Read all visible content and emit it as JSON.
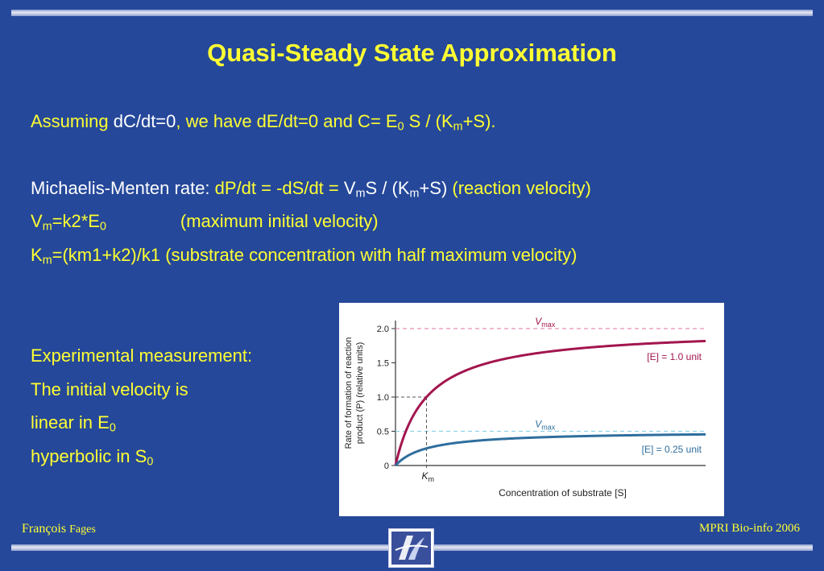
{
  "slide": {
    "title": "Quasi-Steady State Approximation",
    "line1": {
      "a": "Assuming ",
      "b": "dC/dt=0",
      "c": ", we have dE/dt=0 and C= E",
      "sub1": "0",
      "d": " S / (K",
      "sub2": "m",
      "e": "+S)."
    },
    "line2": {
      "label": "Michaelis-Menten rate: ",
      "eq_a": "dP/dt = -dS/dt = ",
      "v": "V",
      "v_sub": "m",
      "s": "S / (K",
      "k_sub": "m",
      "end": "+S) ",
      "note": "(reaction velocity)"
    },
    "line3": {
      "v": "V",
      "v_sub": "m",
      "eq": "=k2*E",
      "e_sub": "0",
      "note": "(maximum initial velocity)"
    },
    "line4": {
      "k": "K",
      "k_sub": "m",
      "eq": "=(km1+k2)/k1 ",
      "note": "(substrate concentration with half maximum velocity)"
    },
    "exp1": "Experimental measurement:",
    "exp2": "The initial velocity is",
    "exp3": "linear in E",
    "exp3_sub": "0",
    "exp4": "hyperbolic in S",
    "exp4_sub": "0",
    "footer_left_a": "François ",
    "footer_left_b": "Fages",
    "footer_right": "MPRI Bio-info  2006"
  },
  "chart_data": {
    "type": "line",
    "xlabel": "Concentration of substrate [S]",
    "ylabel_line1": "Rate of formation of reaction",
    "ylabel_line2": "product (P) (relative units)",
    "ylim": [
      0,
      2.0
    ],
    "xlim": [
      0,
      10
    ],
    "yticks": [
      0,
      0.5,
      1.0,
      1.5,
      2.0
    ],
    "ytick_labels": [
      "0",
      "0.5",
      "1.0",
      "1.5",
      "2.0"
    ],
    "km": 1.0,
    "km_label": "K",
    "km_label_sub": "m",
    "series": [
      {
        "name": "[E] = 1.0 unit",
        "vmax": 2.0,
        "km": 1.0,
        "color": "#a3164f",
        "vmax_label": "V",
        "vmax_label_sub": "max"
      },
      {
        "name": "[E] = 0.25 unit",
        "vmax": 0.5,
        "km": 1.0,
        "color": "#2f6e9d",
        "vmax_label": "V",
        "vmax_label_sub": "max"
      }
    ],
    "colors": {
      "vmax_line_high": "#e88cb6",
      "vmax_line_low": "#8fd1ea",
      "guide": "#555555"
    }
  }
}
